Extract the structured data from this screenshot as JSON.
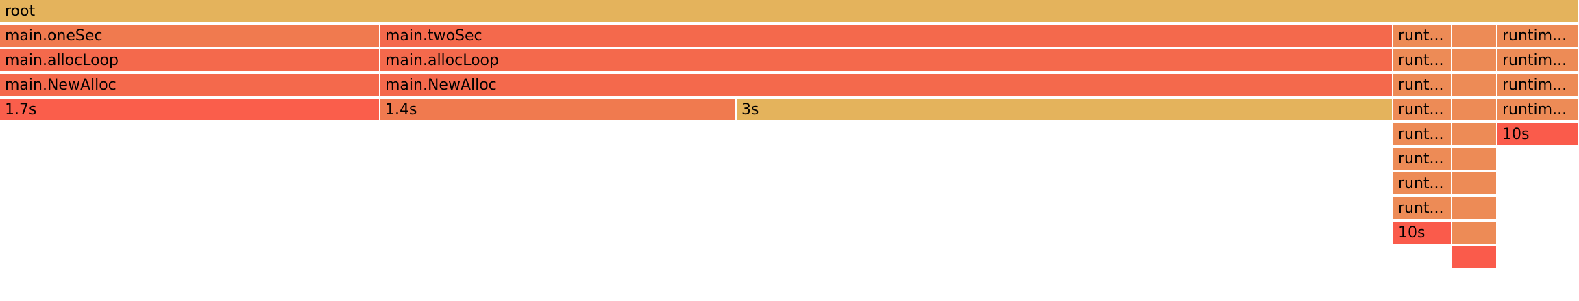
{
  "flamegraph": {
    "frames": [
      {
        "label": "root",
        "color": "#e4b35c"
      },
      {
        "label": "main.oneSec",
        "color": "#f07a4f"
      },
      {
        "label": "main.twoSec",
        "color": "#f4694c"
      },
      {
        "label": "runt...",
        "color": "#ed8b56"
      },
      {
        "label": "",
        "color": "#ed8b56"
      },
      {
        "label": "runtim...",
        "color": "#ed8b56"
      },
      {
        "label": "main.allocLoop",
        "color": "#f4694c"
      },
      {
        "label": "main.allocLoop",
        "color": "#f4694c"
      },
      {
        "label": "runt...",
        "color": "#ed8b56"
      },
      {
        "label": "",
        "color": "#ed8b56"
      },
      {
        "label": "runtim...",
        "color": "#ed8b56"
      },
      {
        "label": "main.NewAlloc",
        "color": "#f4694c"
      },
      {
        "label": "main.NewAlloc",
        "color": "#f4694c"
      },
      {
        "label": "runt...",
        "color": "#ed8b56"
      },
      {
        "label": "",
        "color": "#ed8b56"
      },
      {
        "label": "runtim...",
        "color": "#ed8b56"
      },
      {
        "label": "1.7s",
        "color": "#fa5e4b"
      },
      {
        "label": "1.4s",
        "color": "#f07a4f"
      },
      {
        "label": "3s",
        "color": "#e4b35c"
      },
      {
        "label": "runt...",
        "color": "#ed8b56"
      },
      {
        "label": "",
        "color": "#ed8b56"
      },
      {
        "label": "runtim...",
        "color": "#ed8b56"
      },
      {
        "label": "runt...",
        "color": "#ed8b56"
      },
      {
        "label": "",
        "color": "#ed8b56"
      },
      {
        "label": "10s",
        "color": "#fa5b4b"
      },
      {
        "label": "runt...",
        "color": "#ed8b56"
      },
      {
        "label": "",
        "color": "#ed8b56"
      },
      {
        "label": "runt...",
        "color": "#ed8b56"
      },
      {
        "label": "",
        "color": "#ed8b56"
      },
      {
        "label": "runt...",
        "color": "#ed8b56"
      },
      {
        "label": "",
        "color": "#ed8b56"
      },
      {
        "label": "10s",
        "color": "#fa5b4b"
      },
      {
        "label": "",
        "color": "#ed8b56"
      },
      {
        "label": "",
        "color": "#fa5b4b"
      }
    ]
  }
}
